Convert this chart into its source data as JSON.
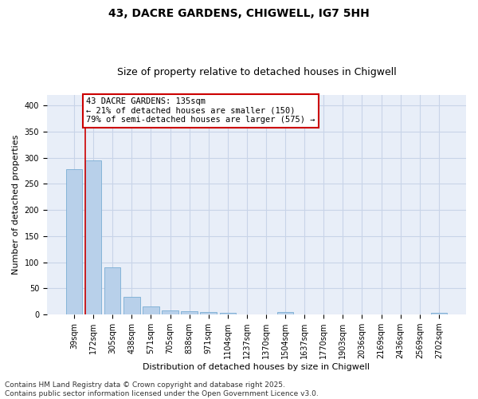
{
  "title1": "43, DACRE GARDENS, CHIGWELL, IG7 5HH",
  "title2": "Size of property relative to detached houses in Chigwell",
  "xlabel": "Distribution of detached houses by size in Chigwell",
  "ylabel": "Number of detached properties",
  "categories": [
    "39sqm",
    "172sqm",
    "305sqm",
    "438sqm",
    "571sqm",
    "705sqm",
    "838sqm",
    "971sqm",
    "1104sqm",
    "1237sqm",
    "1370sqm",
    "1504sqm",
    "1637sqm",
    "1770sqm",
    "1903sqm",
    "2036sqm",
    "2169sqm",
    "2436sqm",
    "2569sqm",
    "2702sqm"
  ],
  "values": [
    278,
    295,
    90,
    34,
    16,
    8,
    6,
    4,
    3,
    0,
    0,
    4,
    0,
    0,
    0,
    0,
    0,
    0,
    0,
    3
  ],
  "bar_color": "#b8d0ea",
  "bar_edge_color": "#7aadd4",
  "grid_color": "#c8d4e8",
  "background_color": "#e8eef8",
  "annotation_box_line1": "43 DACRE GARDENS: 135sqm",
  "annotation_box_line2": "← 21% of detached houses are smaller (150)",
  "annotation_box_line3": "79% of semi-detached houses are larger (575) →",
  "annotation_box_color": "#cc0000",
  "property_line_color": "#cc0000",
  "property_line_x": 0.58,
  "ylim": [
    0,
    420
  ],
  "yticks": [
    0,
    50,
    100,
    150,
    200,
    250,
    300,
    350,
    400
  ],
  "footnote": "Contains HM Land Registry data © Crown copyright and database right 2025.\nContains public sector information licensed under the Open Government Licence v3.0.",
  "title1_fontsize": 10,
  "title2_fontsize": 9,
  "ylabel_fontsize": 8,
  "xlabel_fontsize": 8,
  "tick_fontsize": 7,
  "annotation_fontsize": 7.5,
  "footnote_fontsize": 6.5
}
